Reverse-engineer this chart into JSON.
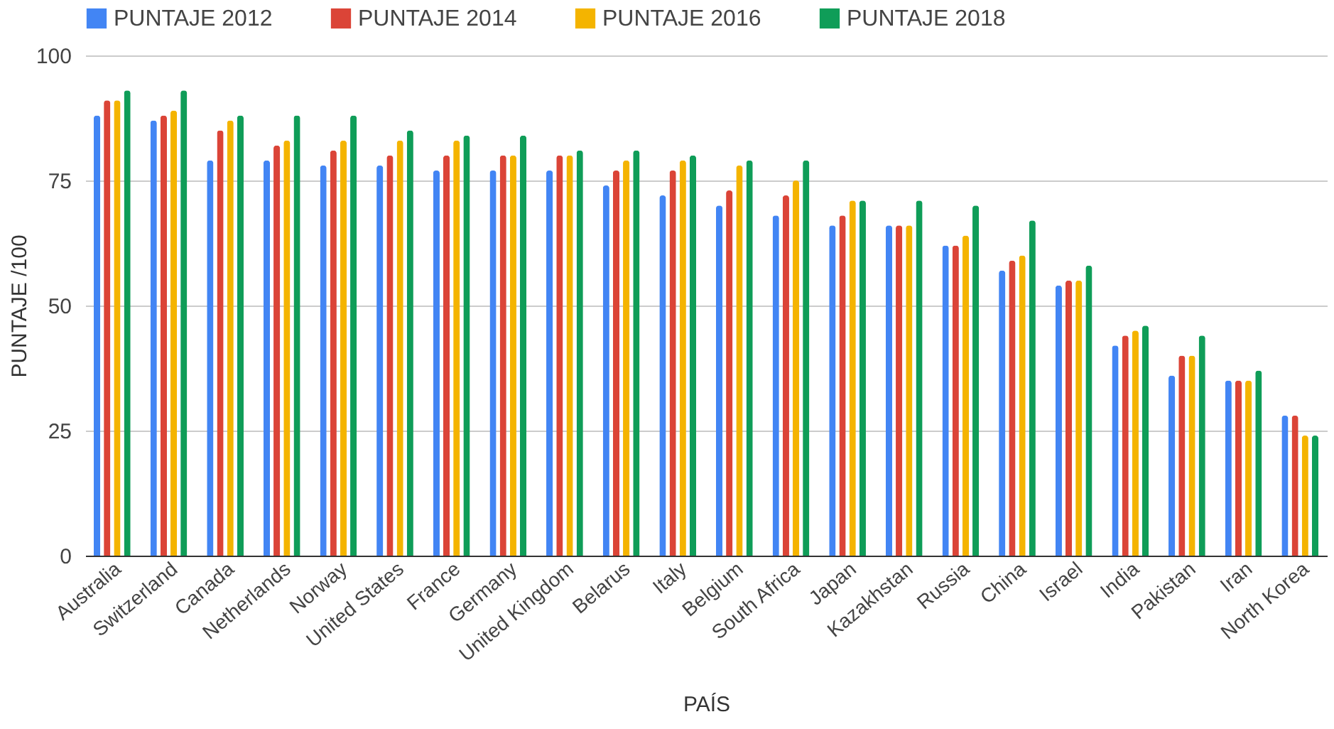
{
  "chart_data": {
    "type": "bar",
    "xlabel": "PAÍS",
    "ylabel": "PUNTAJE /100",
    "categories": [
      "Australia",
      "Switzerland",
      "Canada",
      "Netherlands",
      "Norway",
      "United States",
      "France",
      "Germany",
      "United Kingdom",
      "Belarus",
      "Italy",
      "Belgium",
      "South Africa",
      "Japan",
      "Kazakhstan",
      "Russia",
      "China",
      "Israel",
      "India",
      "Pakistan",
      "Iran",
      "North Korea"
    ],
    "series": [
      {
        "name": "PUNTAJE 2012",
        "color": "#4285f4",
        "values": [
          88,
          87,
          79,
          79,
          78,
          78,
          77,
          77,
          77,
          74,
          72,
          70,
          68,
          66,
          66,
          62,
          57,
          54,
          42,
          36,
          35,
          28
        ]
      },
      {
        "name": "PUNTAJE 2014",
        "color": "#db4437",
        "values": [
          91,
          88,
          85,
          82,
          81,
          80,
          80,
          80,
          80,
          77,
          77,
          73,
          72,
          68,
          66,
          62,
          59,
          55,
          44,
          40,
          35,
          28
        ]
      },
      {
        "name": "PUNTAJE 2016",
        "color": "#f4b400",
        "values": [
          91,
          89,
          87,
          83,
          83,
          83,
          83,
          80,
          80,
          79,
          79,
          78,
          75,
          71,
          66,
          64,
          60,
          55,
          45,
          40,
          35,
          24
        ]
      },
      {
        "name": "PUNTAJE 2018",
        "color": "#0f9d58",
        "values": [
          93,
          93,
          88,
          88,
          88,
          85,
          84,
          84,
          81,
          81,
          80,
          79,
          79,
          71,
          71,
          70,
          67,
          58,
          46,
          44,
          37,
          24
        ]
      }
    ],
    "ylim": [
      0,
      100
    ],
    "yticks": [
      0,
      25,
      50,
      75,
      100
    ],
    "grid": "y",
    "legend": "top"
  }
}
